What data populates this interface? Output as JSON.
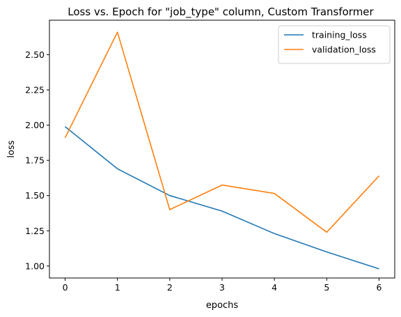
{
  "chart_data": {
    "type": "line",
    "title": "Loss vs. Epoch for \"job_type\" column, Custom Transformer",
    "xlabel": "epochs",
    "ylabel": "loss",
    "x": [
      0,
      1,
      2,
      3,
      4,
      5,
      6
    ],
    "xticks": [
      "0",
      "1",
      "2",
      "3",
      "4",
      "5",
      "6"
    ],
    "yticks": [
      "1.00",
      "1.25",
      "1.50",
      "1.75",
      "2.00",
      "2.25",
      "2.50"
    ],
    "xlim": [
      -0.3,
      6.3
    ],
    "ylim": [
      0.915,
      2.745
    ],
    "grid": false,
    "legend_position": "top-right",
    "series": [
      {
        "name": "training_loss",
        "color": "#1f77b4",
        "values": [
          1.99,
          1.69,
          1.5,
          1.39,
          1.23,
          1.1,
          0.98
        ]
      },
      {
        "name": "validation_loss",
        "color": "#ff7f0e",
        "values": [
          1.91,
          2.66,
          1.4,
          1.575,
          1.515,
          1.24,
          1.64
        ]
      }
    ]
  }
}
